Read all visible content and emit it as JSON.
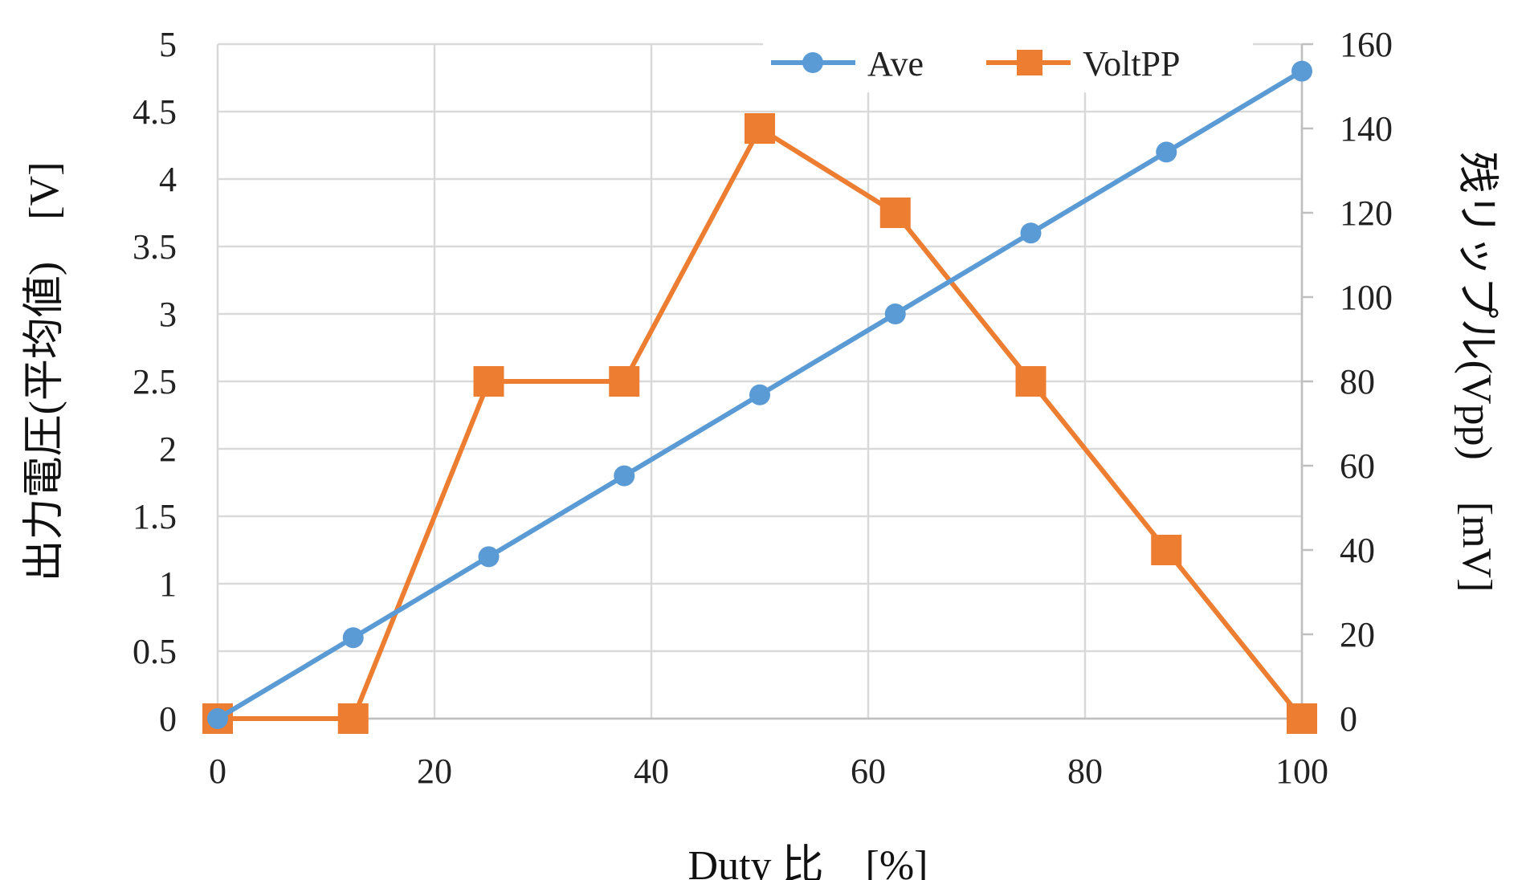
{
  "chart_data": {
    "type": "line",
    "x": [
      0,
      12.5,
      25,
      37.5,
      50,
      62.5,
      75,
      87.5,
      100
    ],
    "series": [
      {
        "name": "Ave",
        "axis": "left",
        "color": "#5B9BD5",
        "marker": "circle",
        "values": [
          0,
          0.6,
          1.2,
          1.8,
          2.4,
          3.0,
          3.6,
          4.2,
          4.8
        ]
      },
      {
        "name": "VoltPP",
        "axis": "right",
        "color": "#ED7D31",
        "marker": "square",
        "values": [
          0,
          0,
          80,
          80,
          140,
          120,
          80,
          40,
          0
        ]
      }
    ],
    "xlim": [
      0,
      100
    ],
    "ylim_left": [
      0,
      5
    ],
    "ylim_right": [
      0,
      160
    ],
    "x_ticks": [
      "0",
      "20",
      "40",
      "60",
      "80",
      "100"
    ],
    "y_left_ticks": [
      "0",
      "0.5",
      "1",
      "1.5",
      "2",
      "2.5",
      "3",
      "3.5",
      "4",
      "4.5",
      "5"
    ],
    "y_right_ticks": [
      "0",
      "20",
      "40",
      "60",
      "80",
      "100",
      "120",
      "140",
      "160"
    ],
    "xlabel": "Duty 比　[%]",
    "ylabel_left": "出力電圧(平均値)　[V]",
    "ylabel_right": "残リップル(Vpp)　[mV]",
    "grid": true,
    "legend_position": "top-right"
  }
}
